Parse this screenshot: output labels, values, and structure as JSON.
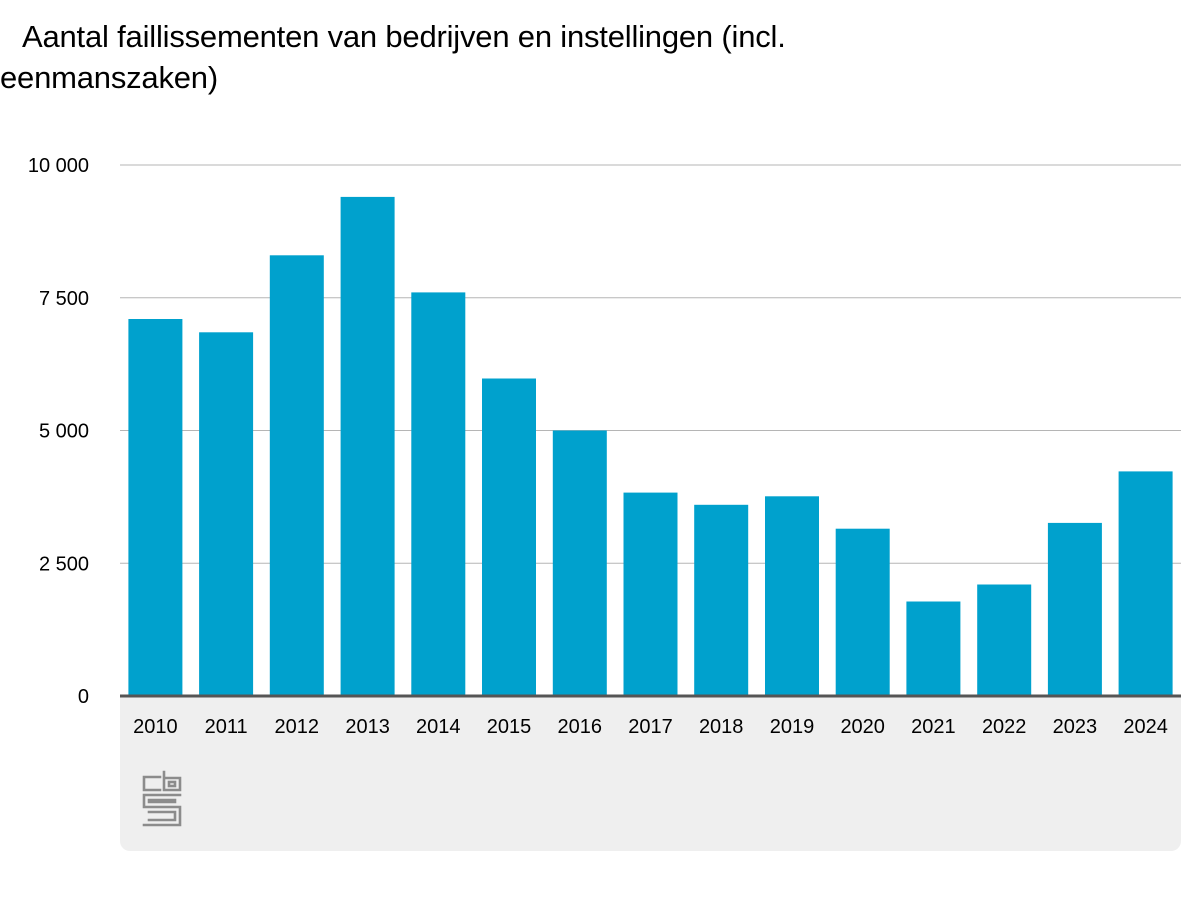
{
  "chart_data": {
    "type": "bar",
    "title": "Aantal faillissementen van bedrijven en instellingen (incl. eenmanszaken)",
    "categories": [
      "2010",
      "2011",
      "2012",
      "2013",
      "2014",
      "2015",
      "2016",
      "2017",
      "2018",
      "2019",
      "2020",
      "2021",
      "2022",
      "2023",
      "2024"
    ],
    "values": [
      7100,
      6850,
      8300,
      9400,
      7600,
      5980,
      5000,
      3830,
      3600,
      3760,
      3150,
      1780,
      2100,
      3260,
      4230
    ],
    "ylim": [
      0,
      10000
    ],
    "yticks": [
      0,
      2500,
      5000,
      7500,
      10000
    ],
    "ytick_labels": [
      "0",
      "2 500",
      "5 000",
      "7 500",
      "10 000"
    ],
    "grid": true,
    "bar_color": "#00a1cd",
    "gridline_color": "#b5b5b5",
    "baseline_color": "#555555"
  },
  "footer": {
    "logo_icon": "cbs-logo-icon",
    "logo_color": "#8c8c8c",
    "panel_color": "#efefef"
  }
}
